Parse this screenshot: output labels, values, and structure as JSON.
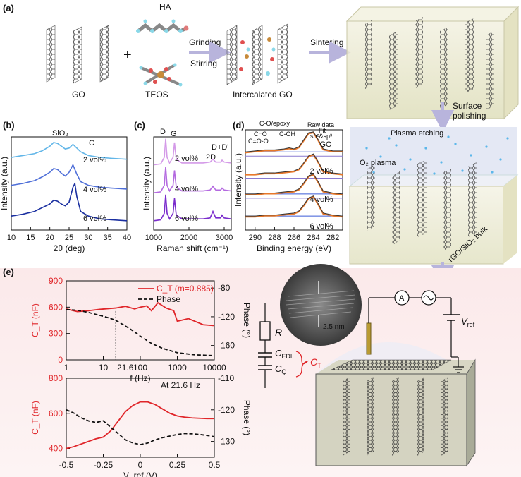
{
  "panel_labels": {
    "a": "(a)",
    "b": "(b)",
    "c": "(c)",
    "d": "(d)",
    "e": "(e)"
  },
  "panel_a": {
    "go_label": "GO",
    "ha_label": "HA",
    "teos_label": "TEOS",
    "grinding": "Grinding",
    "stirring": "Stirring",
    "intercalated_label": "Intercalated GO",
    "sintering": "Sintering",
    "surface_polishing_1": "Surface",
    "surface_polishing_2": "polishing",
    "plasma_etching": "Plasma etching",
    "o2_plasma": "O₂ plasma",
    "bulk_label": "rGO/SiO₂ bulk"
  },
  "panel_e_schematic": {
    "R": "R",
    "CEDL": "C",
    "CEDL_sub": "EDL",
    "CQ": "C",
    "CQ_sub": "Q",
    "CT": "C",
    "CT_sub": "T",
    "A": "A",
    "Vref": "V",
    "Vref_sub": "ref",
    "scale": "2.5 nm"
  },
  "colors": {
    "blue_light": "#62b6e8",
    "blue_mid": "#4f6fd8",
    "blue_dark": "#1a2fa0",
    "purple_light": "#d49ae8",
    "purple_mid": "#b46ae0",
    "purple_dark": "#7a2ccc",
    "red": "#e0262a",
    "black": "#111111",
    "pink_bg": "#fcefee"
  },
  "chart_data": [
    {
      "id": "b",
      "type": "line",
      "xlabel": "2θ (deg)",
      "ylabel": "Intensity (a.u.)",
      "xlim": [
        10,
        40
      ],
      "xticks": [
        10,
        15,
        20,
        25,
        30,
        35,
        40
      ],
      "annotations": [
        "SiO₂",
        "C"
      ],
      "series": [
        {
          "name": "2 vol%",
          "color": "#62b6e8",
          "x": [
            10,
            13,
            16,
            18,
            20,
            21,
            22,
            23,
            24,
            25,
            26,
            27,
            28,
            30,
            33,
            36,
            40
          ],
          "y": [
            0.78,
            0.8,
            0.82,
            0.85,
            0.9,
            0.94,
            0.93,
            0.9,
            0.87,
            0.88,
            0.92,
            0.88,
            0.84,
            0.8,
            0.78,
            0.77,
            0.76
          ]
        },
        {
          "name": "4 vol%",
          "color": "#4f6fd8",
          "x": [
            10,
            13,
            16,
            18,
            20,
            21,
            22,
            23,
            24,
            25,
            26,
            27,
            28,
            30,
            33,
            36,
            40
          ],
          "y": [
            0.48,
            0.5,
            0.53,
            0.57,
            0.62,
            0.66,
            0.65,
            0.61,
            0.58,
            0.62,
            0.7,
            0.6,
            0.52,
            0.48,
            0.46,
            0.45,
            0.44
          ]
        },
        {
          "name": "6 vol%",
          "color": "#1a2fa0",
          "x": [
            10,
            13,
            16,
            18,
            20,
            21,
            22,
            23,
            24,
            25,
            26,
            26.5,
            27,
            28,
            30,
            33,
            36,
            40
          ],
          "y": [
            0.15,
            0.17,
            0.2,
            0.24,
            0.28,
            0.32,
            0.31,
            0.28,
            0.26,
            0.3,
            0.46,
            0.5,
            0.36,
            0.2,
            0.15,
            0.12,
            0.11,
            0.1
          ]
        }
      ]
    },
    {
      "id": "c",
      "type": "line",
      "xlabel": "Raman shift (cm⁻¹)",
      "ylabel": "Intensity (a.u.)",
      "xlim": [
        1000,
        3200
      ],
      "xticks": [
        1000,
        2000,
        3000
      ],
      "annotations": [
        "D",
        "G",
        "2D",
        "D+D'"
      ],
      "series": [
        {
          "name": "2 vol%",
          "color": "#d49ae8",
          "x": [
            1000,
            1200,
            1300,
            1340,
            1380,
            1450,
            1550,
            1590,
            1640,
            1800,
            2400,
            2600,
            2680,
            2760,
            2900,
            2940,
            3000,
            3200
          ],
          "y": [
            0.7,
            0.71,
            0.78,
            0.98,
            0.78,
            0.72,
            0.78,
            0.94,
            0.76,
            0.72,
            0.72,
            0.73,
            0.76,
            0.73,
            0.73,
            0.75,
            0.73,
            0.72
          ]
        },
        {
          "name": "4 vol%",
          "color": "#b46ae0",
          "x": [
            1000,
            1200,
            1300,
            1340,
            1380,
            1450,
            1550,
            1590,
            1640,
            1800,
            2400,
            2600,
            2680,
            2760,
            2900,
            2940,
            3000,
            3200
          ],
          "y": [
            0.4,
            0.41,
            0.48,
            0.68,
            0.48,
            0.42,
            0.48,
            0.64,
            0.46,
            0.42,
            0.42,
            0.43,
            0.47,
            0.43,
            0.43,
            0.45,
            0.43,
            0.42
          ]
        },
        {
          "name": "6 vol%",
          "color": "#7a2ccc",
          "x": [
            1000,
            1200,
            1300,
            1340,
            1380,
            1450,
            1550,
            1590,
            1640,
            1800,
            2400,
            2600,
            2680,
            2760,
            2900,
            2940,
            3000,
            3200
          ],
          "y": [
            0.1,
            0.11,
            0.18,
            0.38,
            0.18,
            0.12,
            0.18,
            0.34,
            0.16,
            0.12,
            0.12,
            0.13,
            0.2,
            0.13,
            0.13,
            0.16,
            0.13,
            0.12
          ]
        }
      ]
    },
    {
      "id": "d",
      "type": "line",
      "xlabel": "Binding energy (eV)",
      "ylabel": "Intensity (a.u.)",
      "xlim": [
        291,
        281
      ],
      "xticks": [
        290,
        288,
        286,
        284,
        282
      ],
      "annotations": [
        "C-O/epoxy",
        "C=O",
        "C=O-O",
        "C-OH",
        "Raw data",
        "Fit",
        "sp²&sp³"
      ],
      "series": [
        {
          "name": "GO",
          "x": [
            291,
            290,
            289,
            288,
            287,
            286.5,
            286,
            285.5,
            285,
            284.5,
            284,
            283.5,
            283,
            282,
            281
          ],
          "y": [
            0.78,
            0.79,
            0.8,
            0.8,
            0.81,
            0.82,
            0.81,
            0.83,
            0.9,
            0.97,
            0.98,
            0.9,
            0.81,
            0.79,
            0.79
          ]
        },
        {
          "name": "2 vol%",
          "x": [
            291,
            290,
            289,
            288,
            287,
            286,
            285.5,
            285,
            284.5,
            284,
            283.5,
            283,
            282,
            281
          ],
          "y": [
            0.56,
            0.56,
            0.57,
            0.57,
            0.58,
            0.59,
            0.61,
            0.67,
            0.74,
            0.76,
            0.68,
            0.59,
            0.57,
            0.56
          ]
        },
        {
          "name": "4 vol%",
          "x": [
            291,
            290,
            289,
            288,
            287,
            286,
            285.5,
            285,
            284.5,
            284,
            283.5,
            283,
            282,
            281
          ],
          "y": [
            0.36,
            0.36,
            0.37,
            0.37,
            0.38,
            0.39,
            0.41,
            0.47,
            0.54,
            0.56,
            0.48,
            0.39,
            0.37,
            0.36
          ]
        },
        {
          "name": "6 vol%",
          "x": [
            291,
            290,
            289,
            288,
            287,
            286,
            285.5,
            285,
            284.5,
            284,
            283.5,
            283,
            282,
            281
          ],
          "y": [
            0.14,
            0.14,
            0.15,
            0.15,
            0.16,
            0.17,
            0.19,
            0.25,
            0.32,
            0.34,
            0.26,
            0.17,
            0.15,
            0.14
          ]
        }
      ]
    },
    {
      "id": "e_top",
      "type": "line",
      "xscale": "log",
      "xlabel": "f (Hz)",
      "ylabel": "C_T (nF)",
      "ylabel2": "Phase (°)",
      "xlim": [
        1,
        10000
      ],
      "ylim": [
        0,
        900
      ],
      "y2lim": [
        -180,
        -70
      ],
      "xticks": [
        1,
        10,
        100,
        1000,
        10000
      ],
      "yticks": [
        0,
        300,
        600,
        900
      ],
      "y2ticks": [
        -80,
        -120,
        -160
      ],
      "marker_x": 21.6,
      "marker_label": "21.6",
      "series": [
        {
          "name": "C_T (m=0.885)",
          "axis": "left",
          "color": "#e0262a",
          "style": "solid",
          "x": [
            1,
            2,
            4,
            8,
            15,
            21.6,
            40,
            70,
            100,
            150,
            200,
            300,
            500,
            800,
            1000,
            2000,
            5000,
            10000
          ],
          "y": [
            580,
            550,
            560,
            575,
            585,
            590,
            610,
            580,
            600,
            615,
            560,
            650,
            590,
            560,
            440,
            470,
            400,
            390
          ]
        },
        {
          "name": "Phase",
          "axis": "right",
          "color": "#111111",
          "style": "dashed",
          "x": [
            1,
            2,
            4,
            8,
            15,
            21.6,
            40,
            70,
            100,
            200,
            400,
            1000,
            3000,
            10000
          ],
          "y": [
            -110,
            -111,
            -114,
            -118,
            -122,
            -125,
            -133,
            -141,
            -147,
            -157,
            -164,
            -170,
            -173,
            -174
          ]
        }
      ]
    },
    {
      "id": "e_bottom",
      "type": "line",
      "xlabel": "V_ref (V)",
      "ylabel": "C_T (nF)",
      "ylabel2": "Phase (°)",
      "xlim": [
        -0.5,
        0.5
      ],
      "ylim": [
        350,
        800
      ],
      "y2lim": [
        -135,
        -110
      ],
      "xticks": [
        -0.5,
        -0.25,
        0,
        0.25,
        0.5
      ],
      "yticks": [
        400,
        600,
        800
      ],
      "y2ticks": [
        -110,
        -120,
        -130
      ],
      "annotation": "At 21.6 Hz",
      "series": [
        {
          "name": "C_T",
          "axis": "left",
          "color": "#e0262a",
          "style": "solid",
          "x": [
            -0.5,
            -0.45,
            -0.4,
            -0.35,
            -0.3,
            -0.25,
            -0.2,
            -0.15,
            -0.1,
            -0.05,
            0,
            0.05,
            0.1,
            0.15,
            0.2,
            0.25,
            0.3,
            0.35,
            0.4,
            0.45,
            0.5
          ],
          "y": [
            400,
            410,
            425,
            440,
            455,
            465,
            500,
            555,
            610,
            645,
            665,
            665,
            650,
            625,
            600,
            585,
            578,
            574,
            572,
            570,
            570
          ]
        },
        {
          "name": "Phase",
          "axis": "right",
          "color": "#111111",
          "style": "dashed",
          "x": [
            -0.5,
            -0.45,
            -0.4,
            -0.35,
            -0.3,
            -0.25,
            -0.2,
            -0.15,
            -0.1,
            -0.05,
            0,
            0.05,
            0.1,
            0.15,
            0.2,
            0.25,
            0.3,
            0.35,
            0.4,
            0.45,
            0.5
          ],
          "y": [
            -120,
            -121,
            -122.5,
            -123.5,
            -124,
            -123.5,
            -125.5,
            -127.5,
            -129.5,
            -130.5,
            -131,
            -130.5,
            -129.5,
            -128.8,
            -128.3,
            -127.8,
            -127.5,
            -127.6,
            -127.8,
            -128.1,
            -128.5
          ]
        }
      ]
    }
  ]
}
